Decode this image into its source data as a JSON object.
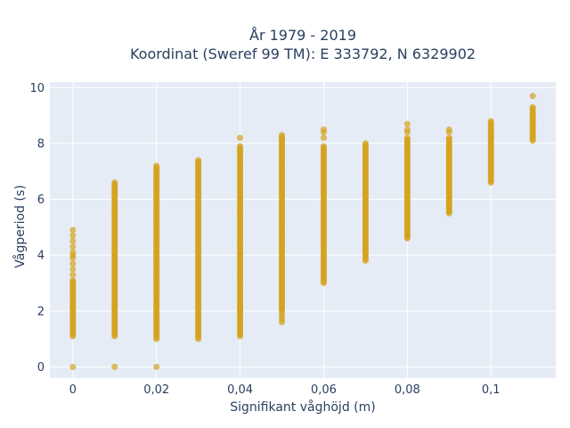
{
  "chart_data": {
    "type": "scatter",
    "title_line1": "År 1979 - 2019",
    "title_line2": "Koordinat (Sweref 99 TM): E 333792, N 6329902",
    "xlabel": "Signifikant våghöjd (m)",
    "ylabel": "Vågperiod (s)",
    "xlim": [
      -0.0055,
      0.1155
    ],
    "ylim": [
      -0.4,
      10.2
    ],
    "x_ticks": [
      0,
      0.02,
      0.04,
      0.06,
      0.08,
      0.1
    ],
    "x_tick_labels": [
      "0",
      "0,02",
      "0,04",
      "0,06",
      "0,08",
      "0,1"
    ],
    "y_ticks": [
      0,
      2,
      4,
      6,
      8,
      10
    ],
    "y_tick_labels": [
      "0",
      "2",
      "4",
      "6",
      "8",
      "10"
    ],
    "grid": true,
    "marker_color": "#d4a21e",
    "background_color": "#e5ecf6",
    "series": [
      {
        "columns": [
          {
            "x": 0.0,
            "y_min": 1.1,
            "y_max": 3.1,
            "extra": [
              0,
              3.3,
              3.5,
              3.7,
              3.9,
              4.0,
              4.1,
              4.3,
              4.5,
              4.7,
              4.9
            ]
          },
          {
            "x": 0.01,
            "y_min": 1.1,
            "y_max": 6.6,
            "extra": [
              0
            ]
          },
          {
            "x": 0.02,
            "y_min": 1.0,
            "y_max": 7.2,
            "extra": [
              0
            ]
          },
          {
            "x": 0.03,
            "y_min": 1.0,
            "y_max": 7.4,
            "extra": []
          },
          {
            "x": 0.04,
            "y_min": 1.1,
            "y_max": 7.9,
            "extra": [
              8.2
            ]
          },
          {
            "x": 0.05,
            "y_min": 2.0,
            "y_max": 8.3,
            "extra": [
              1.6,
              1.7,
              1.8,
              1.9
            ]
          },
          {
            "x": 0.06,
            "y_min": 3.0,
            "y_max": 7.9,
            "extra": [
              8.2,
              8.4,
              8.5
            ]
          },
          {
            "x": 0.07,
            "y_min": 3.8,
            "y_max": 8.0,
            "extra": []
          },
          {
            "x": 0.08,
            "y_min": 4.6,
            "y_max": 8.2,
            "extra": [
              8.4,
              8.5,
              8.7
            ]
          },
          {
            "x": 0.09,
            "y_min": 5.5,
            "y_max": 8.2,
            "extra": [
              8.4,
              8.5
            ]
          },
          {
            "x": 0.1,
            "y_min": 6.6,
            "y_max": 8.8,
            "extra": []
          },
          {
            "x": 0.11,
            "y_min": 8.1,
            "y_max": 9.3,
            "extra": [
              9.7
            ]
          }
        ]
      }
    ]
  }
}
